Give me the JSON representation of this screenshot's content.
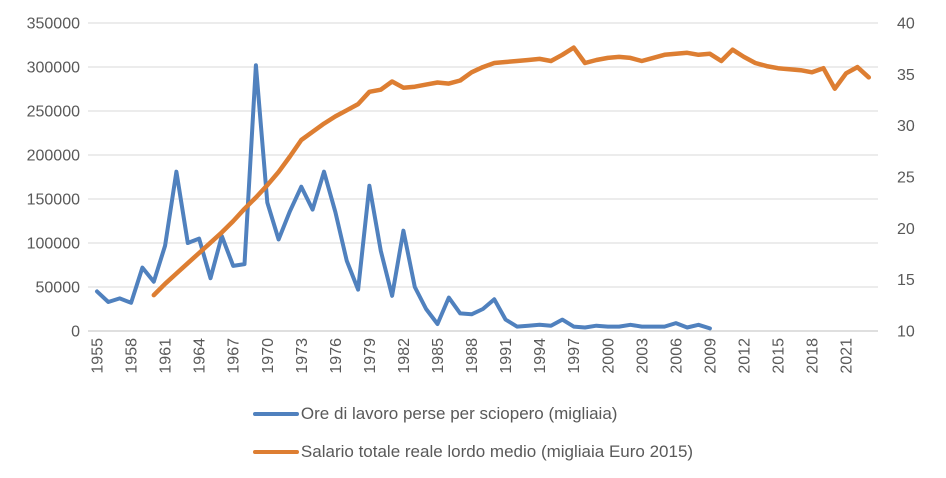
{
  "chart_data": {
    "type": "line",
    "title": "",
    "grid": "horizontal",
    "legend_position": "bottom",
    "x": {
      "start": 1955,
      "end": 2023,
      "tick_years": [
        1955,
        1958,
        1961,
        1964,
        1967,
        1970,
        1973,
        1976,
        1979,
        1982,
        1985,
        1988,
        1991,
        1994,
        1997,
        2000,
        2003,
        2006,
        2009,
        2012,
        2015,
        2018,
        2021
      ]
    },
    "axes": {
      "left": {
        "min": 0,
        "max": 350000,
        "step": 50000,
        "ticks": [
          350000,
          300000,
          250000,
          200000,
          150000,
          100000,
          50000,
          0
        ]
      },
      "right": {
        "min": 10,
        "max": 40,
        "step": 5,
        "ticks": [
          40,
          35,
          30,
          25,
          20,
          15,
          10
        ]
      }
    },
    "series": [
      {
        "name": "Ore di lavoro perse per sciopero (migliaia)",
        "color": "#5081BE",
        "axis": "left",
        "start_year": 1955,
        "end_year": 2009,
        "values": [
          45000,
          33000,
          37000,
          32000,
          72000,
          56000,
          97000,
          181000,
          100000,
          105000,
          60000,
          108000,
          74000,
          76000,
          302000,
          146000,
          104000,
          136000,
          164000,
          138000,
          181000,
          135000,
          80000,
          47000,
          165000,
          91000,
          40000,
          114000,
          50000,
          25000,
          8000,
          38000,
          20000,
          19000,
          25000,
          36000,
          13000,
          5000,
          6000,
          7000,
          6000,
          13000,
          5000,
          4000,
          6000,
          5000,
          5000,
          7000,
          5000,
          5000,
          5000,
          9000,
          4000,
          7000,
          3000
        ]
      },
      {
        "name": "Salario totale reale lordo medio (migliaia Euro 2015)",
        "color": "#DD7E32",
        "axis": "right",
        "start_year": 1960,
        "end_year": 2023,
        "values": [
          13.5,
          14.6,
          15.6,
          16.6,
          17.6,
          18.6,
          19.6,
          20.7,
          21.9,
          23.0,
          24.2,
          25.5,
          27.0,
          28.6,
          29.4,
          30.2,
          30.9,
          31.5,
          32.1,
          33.3,
          33.5,
          34.3,
          33.7,
          33.8,
          34.0,
          34.2,
          34.1,
          34.4,
          35.2,
          35.7,
          36.1,
          36.2,
          36.3,
          36.4,
          36.5,
          36.3,
          36.9,
          37.6,
          36.1,
          36.4,
          36.6,
          36.7,
          36.6,
          36.3,
          36.6,
          36.9,
          37.0,
          37.1,
          36.9,
          37.0,
          36.3,
          37.4,
          36.7,
          36.1,
          35.8,
          35.6,
          35.5,
          35.4,
          35.2,
          35.6,
          33.6,
          35.1,
          35.7,
          34.7
        ]
      }
    ]
  },
  "colors": {
    "gridline": "#D9D9D9",
    "axis_line": "#BFBFBF",
    "tick_text": "#595959"
  }
}
